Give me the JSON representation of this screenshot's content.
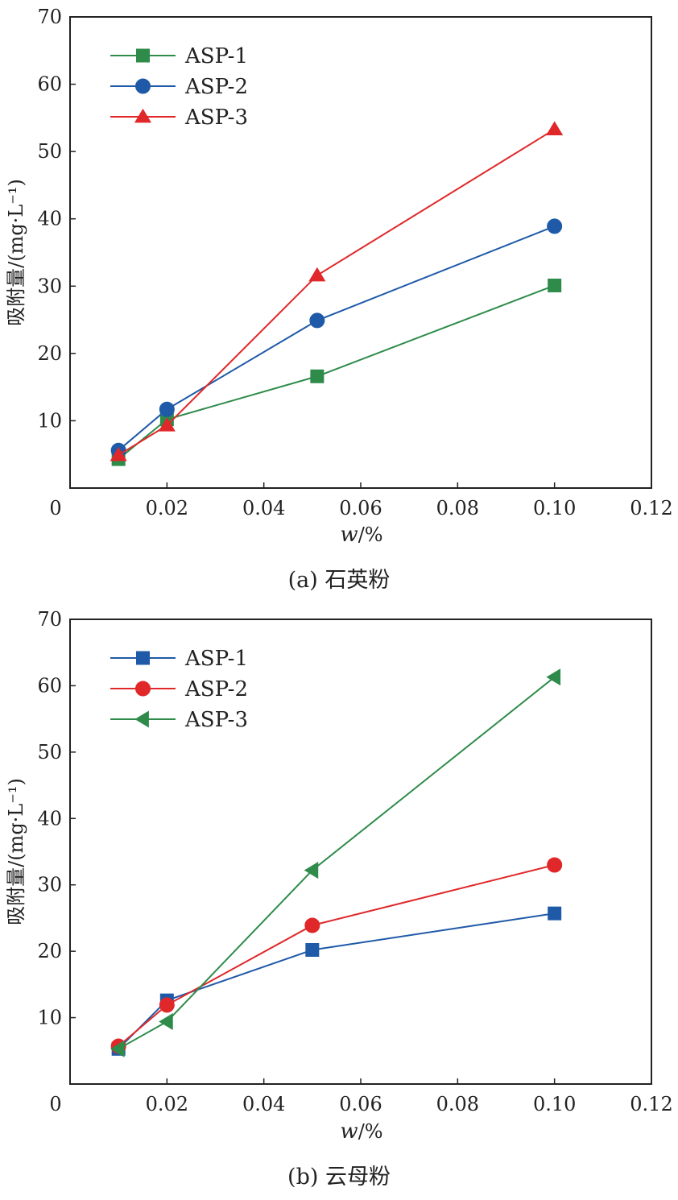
{
  "chart_data": [
    {
      "type": "line",
      "caption": "(a) 石英粉",
      "xlabel_main": "w",
      "xlabel_unit": "/%",
      "ylabel": "吸附量/(mg·L⁻¹)",
      "xlim": [
        0,
        0.12
      ],
      "ylim": [
        0,
        70
      ],
      "xticks": [
        0,
        0.02,
        0.04,
        0.06,
        0.08,
        0.1,
        0.12
      ],
      "xtick_labels": [
        "0",
        "0.02",
        "0.04",
        "0.06",
        "0.08",
        "0.10",
        "0.12"
      ],
      "yticks": [
        10,
        20,
        30,
        40,
        50,
        60,
        70
      ],
      "ytick_labels": [
        "10",
        "20",
        "30",
        "40",
        "50",
        "60",
        "70"
      ],
      "legend_position": "top-left",
      "series": [
        {
          "name": "ASP-1",
          "color": "#2e8b4a",
          "marker": "square",
          "x": [
            0.01,
            0.02,
            0.051,
            0.1
          ],
          "y": [
            4.3,
            10.2,
            16.6,
            30.1
          ]
        },
        {
          "name": "ASP-2",
          "color": "#1f5aa8",
          "marker": "circle",
          "x": [
            0.01,
            0.02,
            0.051,
            0.1
          ],
          "y": [
            5.6,
            11.7,
            24.9,
            38.9
          ]
        },
        {
          "name": "ASP-3",
          "color": "#e0282a",
          "marker": "triangle-up",
          "x": [
            0.01,
            0.02,
            0.051,
            0.1
          ],
          "y": [
            4.9,
            9.3,
            31.6,
            53.3
          ]
        }
      ]
    },
    {
      "type": "line",
      "caption": "(b) 云母粉",
      "xlabel_main": "w",
      "xlabel_unit": "/%",
      "ylabel": "吸附量/(mg·L⁻¹)",
      "xlim": [
        0,
        0.12
      ],
      "ylim": [
        0,
        70
      ],
      "xticks": [
        0,
        0.02,
        0.04,
        0.06,
        0.08,
        0.1,
        0.12
      ],
      "xtick_labels": [
        "0",
        "0.02",
        "0.04",
        "0.06",
        "0.08",
        "0.10",
        "0.12"
      ],
      "yticks": [
        10,
        20,
        30,
        40,
        50,
        60,
        70
      ],
      "ytick_labels": [
        "10",
        "20",
        "30",
        "40",
        "50",
        "60",
        "70"
      ],
      "legend_position": "top-left",
      "series": [
        {
          "name": "ASP-1",
          "color": "#1f5aa8",
          "marker": "square",
          "x": [
            0.01,
            0.02,
            0.05,
            0.1
          ],
          "y": [
            5.3,
            12.6,
            20.2,
            25.7
          ]
        },
        {
          "name": "ASP-2",
          "color": "#e0282a",
          "marker": "circle",
          "x": [
            0.01,
            0.02,
            0.05,
            0.1
          ],
          "y": [
            5.7,
            11.9,
            23.9,
            33.0
          ]
        },
        {
          "name": "ASP-3",
          "color": "#2e8b4a",
          "marker": "triangle-left",
          "x": [
            0.01,
            0.02,
            0.05,
            0.1
          ],
          "y": [
            5.3,
            9.4,
            32.2,
            61.3
          ]
        }
      ]
    }
  ]
}
